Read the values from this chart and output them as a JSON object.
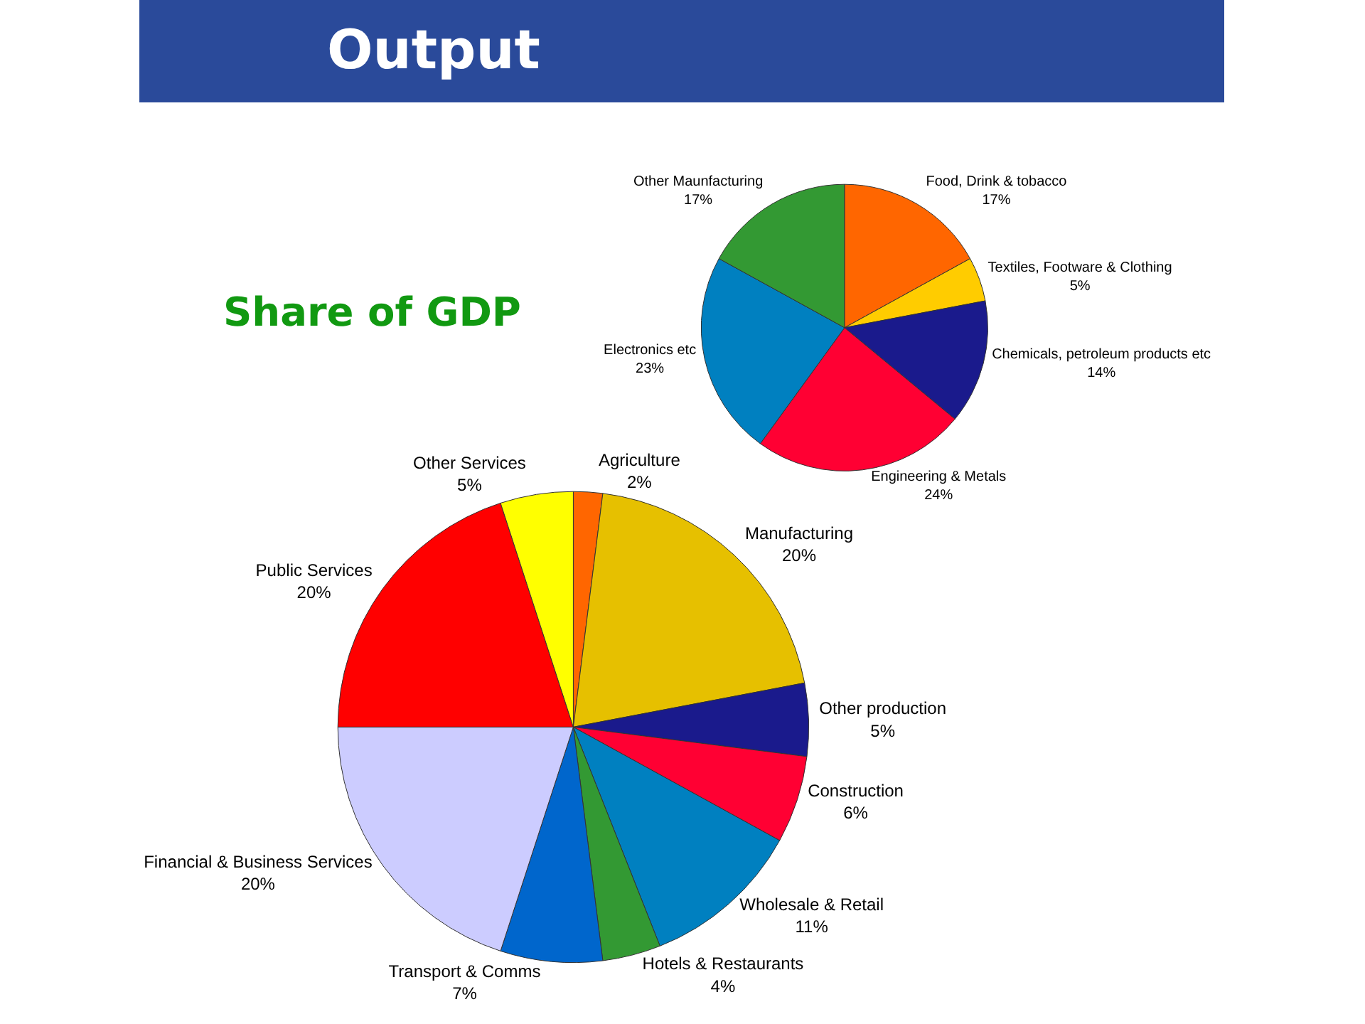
{
  "chart_data": [
    {
      "type": "pie",
      "title": "Output",
      "subtitle": "Share of GDP",
      "categories": [
        "Agriculture",
        "Manufacturing",
        "Other production",
        "Construction",
        "Wholesale & Retail",
        "Hotels & Restaurants",
        "Transport & Comms",
        "Financial & Business Services",
        "Public Services",
        "Other Services"
      ],
      "values": [
        2,
        20,
        5,
        6,
        11,
        4,
        7,
        20,
        20,
        5
      ],
      "value_labels": [
        "2%",
        "20%",
        "5%",
        "6%",
        "11%",
        "4%",
        "7%",
        "20%",
        "20%",
        "5%"
      ],
      "colors": [
        "#ff6600",
        "#e6c000",
        "#1a1a8c",
        "#ff0033",
        "#0080c0",
        "#339933",
        "#0066cc",
        "#ccccff",
        "#ff0000",
        "#ffff00"
      ]
    },
    {
      "type": "pie",
      "categories": [
        "Food, Drink & tobacco",
        "Textiles, Footware & Clothing",
        "Chemicals, petroleum products etc",
        "Engineering & Metals",
        "Electronics etc",
        "Other Maunfacturing"
      ],
      "values": [
        17,
        5,
        14,
        24,
        23,
        17
      ],
      "value_labels": [
        "17%",
        "5%",
        "14%",
        "24%",
        "23%",
        "17%"
      ],
      "colors": [
        "#ff6600",
        "#ffcc00",
        "#1a1a8c",
        "#ff0033",
        "#0080c0",
        "#339933"
      ]
    }
  ]
}
